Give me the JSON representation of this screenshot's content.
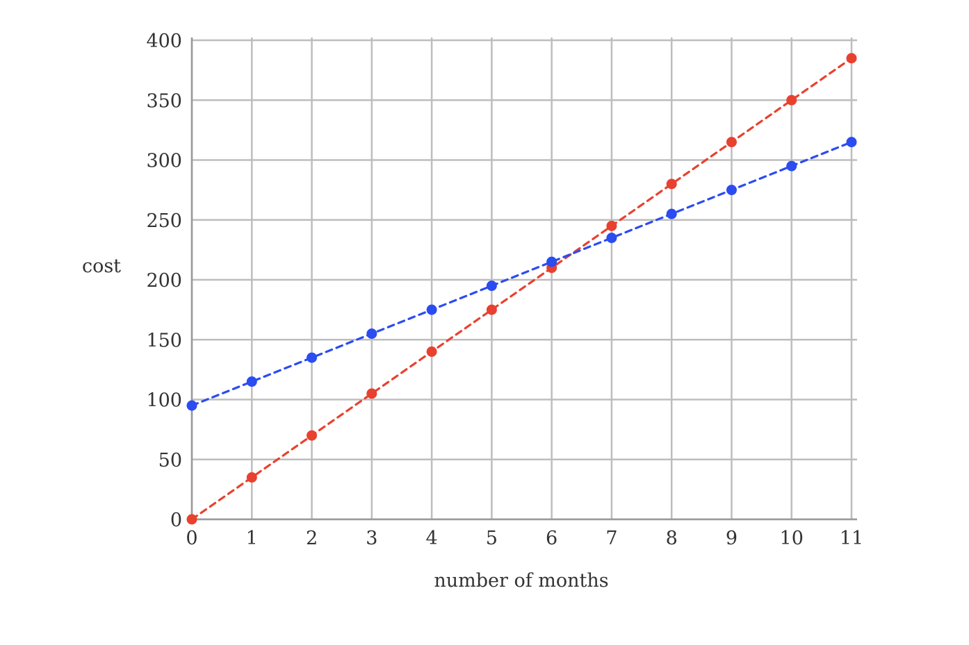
{
  "chart_data": {
    "type": "line",
    "xlabel": "number of months",
    "ylabel": "cost",
    "xlim": [
      0,
      11
    ],
    "ylim": [
      0,
      400
    ],
    "x_ticks": [
      0,
      1,
      2,
      3,
      4,
      5,
      6,
      7,
      8,
      9,
      10,
      11
    ],
    "y_ticks": [
      0,
      50,
      100,
      150,
      200,
      250,
      300,
      350,
      400
    ],
    "grid": true,
    "line_style": "dashed",
    "markers": true,
    "x": [
      0,
      1,
      2,
      3,
      4,
      5,
      6,
      7,
      8,
      9,
      10,
      11
    ],
    "series": [
      {
        "color": "#e8412f",
        "values": [
          0,
          35,
          70,
          105,
          140,
          175,
          210,
          245,
          280,
          315,
          350,
          385
        ]
      },
      {
        "color": "#2a4cf0",
        "values": [
          95,
          115,
          135,
          155,
          175,
          195,
          215,
          235,
          255,
          275,
          295,
          315
        ]
      }
    ]
  }
}
